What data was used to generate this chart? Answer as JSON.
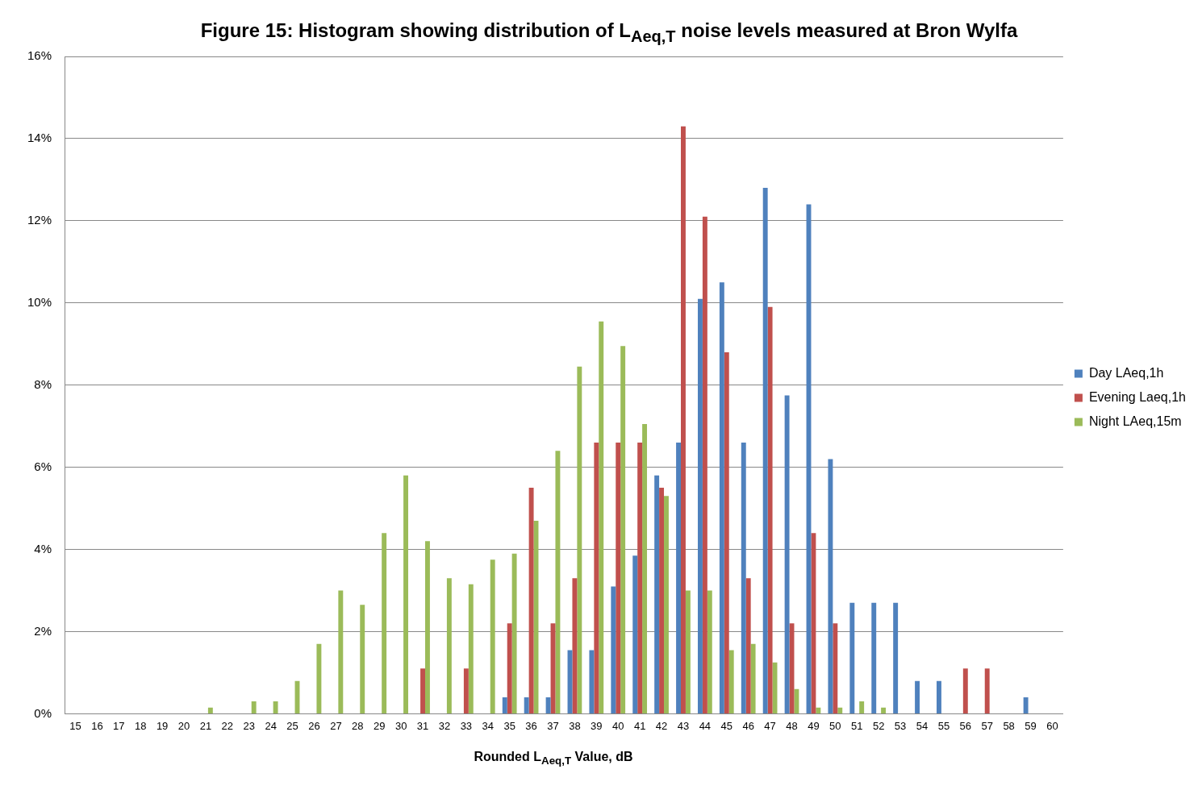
{
  "chart_data": {
    "type": "bar",
    "title": "Figure 15: Histogram showing distribution of L$_{Aeq,T}$ noise levels measured at Bron Wylfa",
    "xlabel": "Rounded L$_{Aeq,T}$ Value, dB",
    "categories": [
      "15",
      "16",
      "17",
      "18",
      "19",
      "20",
      "21",
      "22",
      "23",
      "24",
      "25",
      "26",
      "27",
      "28",
      "29",
      "30",
      "31",
      "32",
      "33",
      "34",
      "35",
      "36",
      "37",
      "38",
      "39",
      "40",
      "41",
      "42",
      "43",
      "44",
      "45",
      "46",
      "47",
      "48",
      "49",
      "50",
      "51",
      "52",
      "53",
      "54",
      "55",
      "56",
      "57",
      "58",
      "59",
      "60"
    ],
    "series": [
      {
        "name": "Day LAeq,1h",
        "color": "#4f81bd",
        "values": [
          0,
          0,
          0,
          0,
          0,
          0,
          0,
          0,
          0,
          0,
          0,
          0,
          0,
          0,
          0,
          0,
          0,
          0,
          0,
          0,
          0.4,
          0.4,
          0.4,
          1.55,
          1.55,
          3.1,
          3.85,
          5.8,
          6.6,
          10.1,
          10.5,
          6.6,
          12.8,
          7.75,
          12.4,
          6.2,
          2.7,
          2.7,
          2.7,
          0.8,
          0.8,
          0,
          0,
          0,
          0.4,
          0
        ]
      },
      {
        "name": "Evening Laeq,1h",
        "color": "#c0504d",
        "values": [
          0,
          0,
          0,
          0,
          0,
          0,
          0,
          0,
          0,
          0,
          0,
          0,
          0,
          0,
          0,
          0,
          1.1,
          0,
          1.1,
          0,
          2.2,
          5.5,
          2.2,
          3.3,
          6.6,
          6.6,
          6.6,
          5.5,
          14.3,
          12.1,
          8.8,
          3.3,
          9.9,
          2.2,
          4.4,
          2.2,
          0,
          0,
          0,
          0,
          0,
          1.1,
          1.1,
          0,
          0,
          0
        ]
      },
      {
        "name": "Night LAeq,15m",
        "color": "#9bbb59",
        "values": [
          0,
          0,
          0,
          0,
          0,
          0,
          0.15,
          0,
          0.3,
          0.3,
          0.8,
          1.7,
          3.0,
          2.65,
          4.4,
          5.8,
          4.2,
          3.3,
          3.15,
          3.75,
          3.9,
          4.7,
          6.4,
          8.45,
          9.55,
          8.95,
          7.05,
          5.3,
          3.0,
          3.0,
          1.55,
          1.7,
          1.25,
          0.6,
          0.15,
          0.15,
          0.3,
          0.15,
          0,
          0,
          0,
          0,
          0,
          0,
          0,
          0
        ]
      }
    ],
    "ylim": [
      0,
      16
    ],
    "yticks": [
      {
        "value": 0,
        "label": "0%"
      },
      {
        "value": 2,
        "label": "2%"
      },
      {
        "value": 4,
        "label": "4%"
      },
      {
        "value": 6,
        "label": "6%"
      },
      {
        "value": 8,
        "label": "8%"
      },
      {
        "value": 10,
        "label": "10%"
      },
      {
        "value": 12,
        "label": "12%"
      },
      {
        "value": 14,
        "label": "14%"
      },
      {
        "value": 16,
        "label": "16%"
      }
    ],
    "grid": "y",
    "legend": "right"
  }
}
